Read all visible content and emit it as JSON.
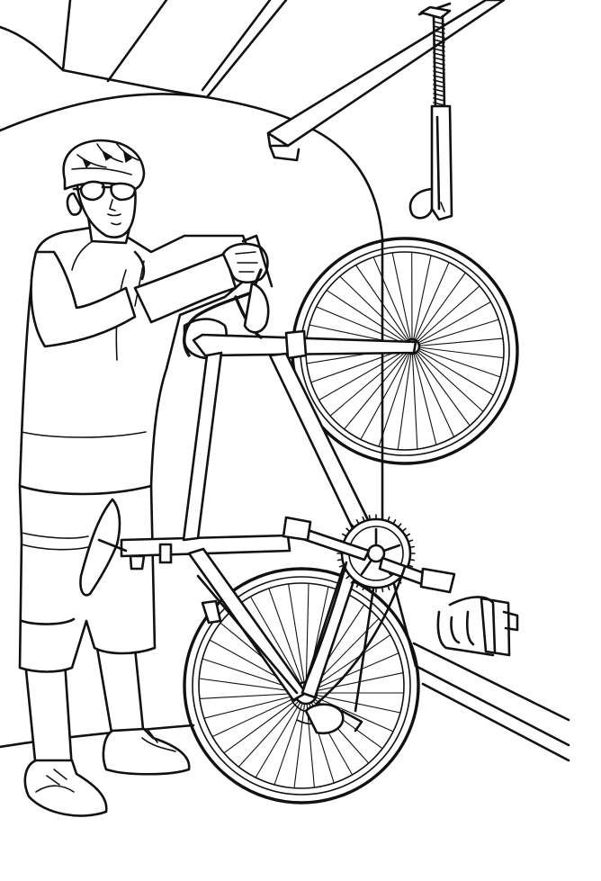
{
  "scene": {
    "background": "#ffffff",
    "line_color": "#111111",
    "wheels": [
      {
        "id": "front",
        "spokes": 32
      },
      {
        "id": "rear",
        "spokes": 32
      }
    ]
  }
}
